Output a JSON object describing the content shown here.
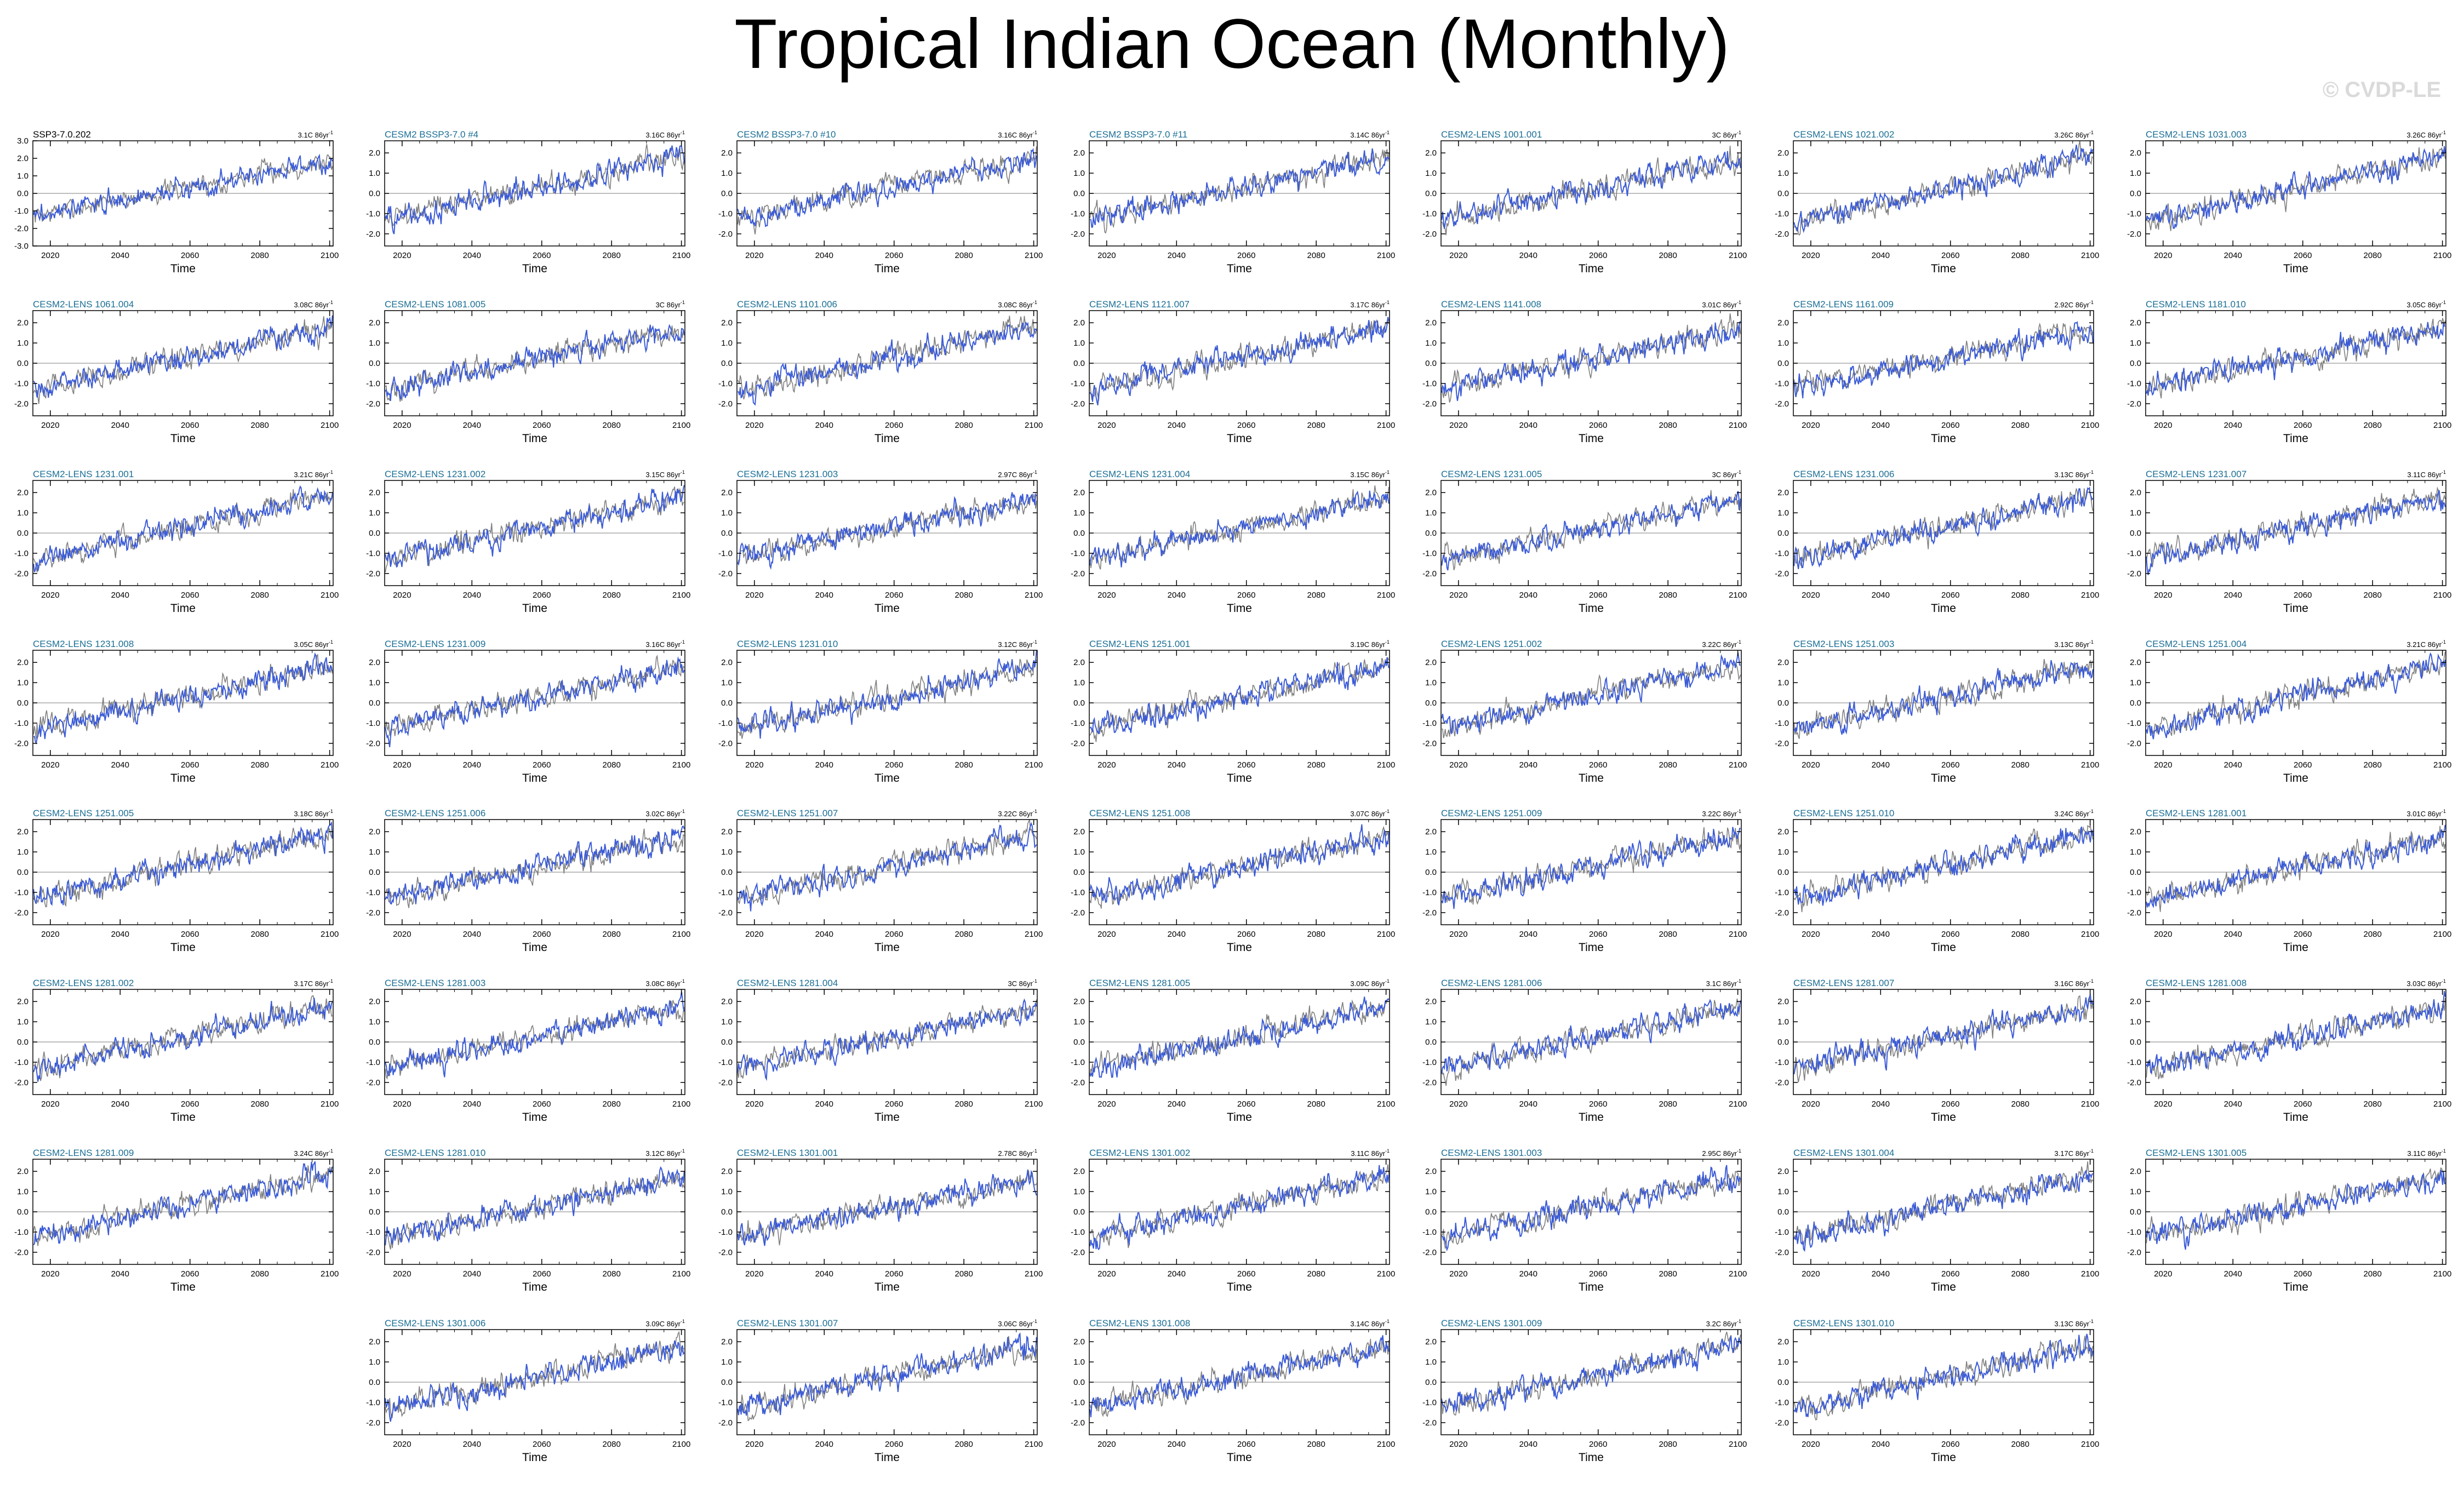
{
  "title": "Tropical Indian Ocean (Monthly)",
  "watermark": "© CVDP-LE",
  "chart_data": {
    "type": "line",
    "title": "Tropical Indian Ocean (Monthly)",
    "xlabel": "Time",
    "xticks": [
      "2020",
      "2040",
      "2060",
      "2080",
      "2100"
    ],
    "xlim": [
      2015,
      2101
    ],
    "grid": false,
    "zero_line": true,
    "colors": {
      "simulation": "#3b5bd6",
      "reference": "#808080",
      "zero_line": "#a9a9a9",
      "axis": "#000000",
      "title_link": "#1a6e95"
    },
    "panels": [
      {
        "title": "SSP3-7.0.202",
        "trend": "3.1C 86yr",
        "ylim": [
          -3,
          3
        ],
        "yticks": [
          "3.0",
          "2.0",
          "1.0",
          "0.0",
          "-1.0",
          "-2.0",
          "-3.0"
        ],
        "start": -1.3,
        "end": 1.9
      },
      {
        "title": "CESM2 BSSP3-7.0 #4",
        "trend": "3.16C 86yr",
        "ylim": [
          -2.6,
          2.6
        ],
        "yticks": [
          "2.0",
          "1.0",
          "0.0",
          "-1.0",
          "-2.0"
        ],
        "start": -1.3,
        "end": 1.9
      },
      {
        "title": "CESM2 BSSP3-7.0 #10",
        "trend": "3.16C 86yr",
        "ylim": [
          -2.6,
          2.6
        ],
        "yticks": [
          "2.0",
          "1.0",
          "0.0",
          "-1.0",
          "-2.0"
        ],
        "start": -1.3,
        "end": 1.8
      },
      {
        "title": "CESM2 BSSP3-7.0 #11",
        "trend": "3.14C 86yr",
        "ylim": [
          -2.6,
          2.6
        ],
        "yticks": [
          "2.0",
          "1.0",
          "0.0",
          "-1.0",
          "-2.0"
        ],
        "start": -1.3,
        "end": 1.8
      },
      {
        "title": "CESM2-LENS 1001.001",
        "trend": "3C 86yr",
        "ylim": [
          -2.6,
          2.6
        ],
        "yticks": [
          "2.0",
          "1.0",
          "0.0",
          "-1.0",
          "-2.0"
        ],
        "start": -1.3,
        "end": 1.7
      },
      {
        "title": "CESM2-LENS 1021.002",
        "trend": "3.26C 86yr",
        "ylim": [
          -2.6,
          2.6
        ],
        "yticks": [
          "2.0",
          "1.0",
          "0.0",
          "-1.0",
          "-2.0"
        ],
        "start": -1.4,
        "end": 1.9
      },
      {
        "title": "CESM2-LENS 1031.003",
        "trend": "3.26C 86yr",
        "ylim": [
          -2.6,
          2.6
        ],
        "yticks": [
          "2.0",
          "1.0",
          "0.0",
          "-1.0",
          "-2.0"
        ],
        "start": -1.3,
        "end": 1.9
      },
      {
        "title": "CESM2-LENS 1061.004",
        "trend": "3.08C 86yr",
        "ylim": [
          -2.6,
          2.6
        ],
        "yticks": [
          "2.0",
          "1.0",
          "0.0",
          "-1.0",
          "-2.0"
        ],
        "start": -1.3,
        "end": 1.8
      },
      {
        "title": "CESM2-LENS 1081.005",
        "trend": "3C 86yr",
        "ylim": [
          -2.6,
          2.6
        ],
        "yticks": [
          "2.0",
          "1.0",
          "0.0",
          "-1.0",
          "-2.0"
        ],
        "start": -1.3,
        "end": 1.7
      },
      {
        "title": "CESM2-LENS 1101.006",
        "trend": "3.08C 86yr",
        "ylim": [
          -2.6,
          2.6
        ],
        "yticks": [
          "2.0",
          "1.0",
          "0.0",
          "-1.0",
          "-2.0"
        ],
        "start": -1.3,
        "end": 1.8
      },
      {
        "title": "CESM2-LENS 1121.007",
        "trend": "3.17C 86yr",
        "ylim": [
          -2.6,
          2.6
        ],
        "yticks": [
          "2.0",
          "1.0",
          "0.0",
          "-1.0",
          "-2.0"
        ],
        "start": -1.3,
        "end": 1.8
      },
      {
        "title": "CESM2-LENS 1141.008",
        "trend": "3.01C 86yr",
        "ylim": [
          -2.6,
          2.6
        ],
        "yticks": [
          "2.0",
          "1.0",
          "0.0",
          "-1.0",
          "-2.0"
        ],
        "start": -1.3,
        "end": 1.7
      },
      {
        "title": "CESM2-LENS 1161.009",
        "trend": "2.92C 86yr",
        "ylim": [
          -2.6,
          2.6
        ],
        "yticks": [
          "2.0",
          "1.0",
          "0.0",
          "-1.0",
          "-2.0"
        ],
        "start": -1.2,
        "end": 1.7
      },
      {
        "title": "CESM2-LENS 1181.010",
        "trend": "3.05C 86yr",
        "ylim": [
          -2.6,
          2.6
        ],
        "yticks": [
          "2.0",
          "1.0",
          "0.0",
          "-1.0",
          "-2.0"
        ],
        "start": -1.3,
        "end": 1.8
      },
      {
        "title": "CESM2-LENS 1231.001",
        "trend": "3.21C 86yr",
        "ylim": [
          -2.6,
          2.6
        ],
        "yticks": [
          "2.0",
          "1.0",
          "0.0",
          "-1.0",
          "-2.0"
        ],
        "start": -1.3,
        "end": 1.9
      },
      {
        "title": "CESM2-LENS 1231.002",
        "trend": "3.15C 86yr",
        "ylim": [
          -2.6,
          2.6
        ],
        "yticks": [
          "2.0",
          "1.0",
          "0.0",
          "-1.0",
          "-2.0"
        ],
        "start": -1.3,
        "end": 1.8
      },
      {
        "title": "CESM2-LENS 1231.003",
        "trend": "2.97C 86yr",
        "ylim": [
          -2.6,
          2.6
        ],
        "yticks": [
          "2.0",
          "1.0",
          "0.0",
          "-1.0",
          "-2.0"
        ],
        "start": -1.2,
        "end": 1.7
      },
      {
        "title": "CESM2-LENS 1231.004",
        "trend": "3.15C 86yr",
        "ylim": [
          -2.6,
          2.6
        ],
        "yticks": [
          "2.0",
          "1.0",
          "0.0",
          "-1.0",
          "-2.0"
        ],
        "start": -1.3,
        "end": 1.8
      },
      {
        "title": "CESM2-LENS 1231.005",
        "trend": "3C 86yr",
        "ylim": [
          -2.6,
          2.6
        ],
        "yticks": [
          "2.0",
          "1.0",
          "0.0",
          "-1.0",
          "-2.0"
        ],
        "start": -1.3,
        "end": 1.7
      },
      {
        "title": "CESM2-LENS 1231.006",
        "trend": "3.13C 86yr",
        "ylim": [
          -2.6,
          2.6
        ],
        "yticks": [
          "2.0",
          "1.0",
          "0.0",
          "-1.0",
          "-2.0"
        ],
        "start": -1.3,
        "end": 1.8
      },
      {
        "title": "CESM2-LENS 1231.007",
        "trend": "3.11C 86yr",
        "ylim": [
          -2.6,
          2.6
        ],
        "yticks": [
          "2.0",
          "1.0",
          "0.0",
          "-1.0",
          "-2.0"
        ],
        "start": -1.3,
        "end": 1.8
      },
      {
        "title": "CESM2-LENS 1231.008",
        "trend": "3.05C 86yr",
        "ylim": [
          -2.6,
          2.6
        ],
        "yticks": [
          "2.0",
          "1.0",
          "0.0",
          "-1.0",
          "-2.0"
        ],
        "start": -1.3,
        "end": 1.8
      },
      {
        "title": "CESM2-LENS 1231.009",
        "trend": "3.16C 86yr",
        "ylim": [
          -2.6,
          2.6
        ],
        "yticks": [
          "2.0",
          "1.0",
          "0.0",
          "-1.0",
          "-2.0"
        ],
        "start": -1.3,
        "end": 1.8
      },
      {
        "title": "CESM2-LENS 1231.010",
        "trend": "3.12C 86yr",
        "ylim": [
          -2.6,
          2.6
        ],
        "yticks": [
          "2.0",
          "1.0",
          "0.0",
          "-1.0",
          "-2.0"
        ],
        "start": -1.3,
        "end": 1.8
      },
      {
        "title": "CESM2-LENS 1251.001",
        "trend": "3.19C 86yr",
        "ylim": [
          -2.6,
          2.6
        ],
        "yticks": [
          "2.0",
          "1.0",
          "0.0",
          "-1.0",
          "-2.0"
        ],
        "start": -1.3,
        "end": 1.9
      },
      {
        "title": "CESM2-LENS 1251.002",
        "trend": "3.22C 86yr",
        "ylim": [
          -2.6,
          2.6
        ],
        "yticks": [
          "2.0",
          "1.0",
          "0.0",
          "-1.0",
          "-2.0"
        ],
        "start": -1.3,
        "end": 1.9
      },
      {
        "title": "CESM2-LENS 1251.003",
        "trend": "3.13C 86yr",
        "ylim": [
          -2.6,
          2.6
        ],
        "yticks": [
          "2.0",
          "1.0",
          "0.0",
          "-1.0",
          "-2.0"
        ],
        "start": -1.3,
        "end": 1.8
      },
      {
        "title": "CESM2-LENS 1251.004",
        "trend": "3.21C 86yr",
        "ylim": [
          -2.6,
          2.6
        ],
        "yticks": [
          "2.0",
          "1.0",
          "0.0",
          "-1.0",
          "-2.0"
        ],
        "start": -1.3,
        "end": 1.9
      },
      {
        "title": "CESM2-LENS 1251.005",
        "trend": "3.18C 86yr",
        "ylim": [
          -2.6,
          2.6
        ],
        "yticks": [
          "3.0",
          "2.0",
          "1.0",
          "0.0",
          "-1.0",
          "-2.0"
        ],
        "start": -1.3,
        "end": 1.9
      },
      {
        "title": "CESM2-LENS 1251.006",
        "trend": "3.02C 86yr",
        "ylim": [
          -2.6,
          2.6
        ],
        "yticks": [
          "2.0",
          "1.0",
          "0.0",
          "-1.0",
          "-2.0"
        ],
        "start": -1.3,
        "end": 1.7
      },
      {
        "title": "CESM2-LENS 1251.007",
        "trend": "3.22C 86yr",
        "ylim": [
          -2.6,
          2.6
        ],
        "yticks": [
          "2.0",
          "1.0",
          "0.0",
          "-1.0",
          "-2.0"
        ],
        "start": -1.3,
        "end": 1.9
      },
      {
        "title": "CESM2-LENS 1251.008",
        "trend": "3.07C 86yr",
        "ylim": [
          -2.6,
          2.6
        ],
        "yticks": [
          "2.0",
          "1.0",
          "0.0",
          "-1.0",
          "-2.0"
        ],
        "start": -1.3,
        "end": 1.8
      },
      {
        "title": "CESM2-LENS 1251.009",
        "trend": "3.22C 86yr",
        "ylim": [
          -2.6,
          2.6
        ],
        "yticks": [
          "2.0",
          "1.0",
          "0.0",
          "-1.0",
          "-2.0"
        ],
        "start": -1.3,
        "end": 1.9
      },
      {
        "title": "CESM2-LENS 1251.010",
        "trend": "3.24C 86yr",
        "ylim": [
          -2.6,
          2.6
        ],
        "yticks": [
          "2.0",
          "1.0",
          "0.0",
          "-1.0",
          "-2.0"
        ],
        "start": -1.3,
        "end": 1.9
      },
      {
        "title": "CESM2-LENS 1281.001",
        "trend": "3.01C 86yr",
        "ylim": [
          -2.6,
          2.6
        ],
        "yticks": [
          "2.0",
          "1.0",
          "0.0",
          "-1.0",
          "-2.0"
        ],
        "start": -1.3,
        "end": 1.7
      },
      {
        "title": "CESM2-LENS 1281.002",
        "trend": "3.17C 86yr",
        "ylim": [
          -2.6,
          2.6
        ],
        "yticks": [
          "3.0",
          "2.0",
          "1.0",
          "0.0",
          "-1.0",
          "-2.0"
        ],
        "start": -1.3,
        "end": 1.8
      },
      {
        "title": "CESM2-LENS 1281.003",
        "trend": "3.08C 86yr",
        "ylim": [
          -2.6,
          2.6
        ],
        "yticks": [
          "2.0",
          "1.0",
          "0.0",
          "-1.0",
          "-2.0"
        ],
        "start": -1.3,
        "end": 1.8
      },
      {
        "title": "CESM2-LENS 1281.004",
        "trend": "3C 86yr",
        "ylim": [
          -2.6,
          2.6
        ],
        "yticks": [
          "2.0",
          "1.0",
          "0.0",
          "-1.0",
          "-2.0"
        ],
        "start": -1.3,
        "end": 1.7
      },
      {
        "title": "CESM2-LENS 1281.005",
        "trend": "3.09C 86yr",
        "ylim": [
          -2.6,
          2.6
        ],
        "yticks": [
          "2.0",
          "1.0",
          "0.0",
          "-1.0",
          "-2.0"
        ],
        "start": -1.3,
        "end": 1.8
      },
      {
        "title": "CESM2-LENS 1281.006",
        "trend": "3.1C 86yr",
        "ylim": [
          -2.6,
          2.6
        ],
        "yticks": [
          "2.0",
          "1.0",
          "0.0",
          "-1.0",
          "-2.0"
        ],
        "start": -1.3,
        "end": 1.8
      },
      {
        "title": "CESM2-LENS 1281.007",
        "trend": "3.16C 86yr",
        "ylim": [
          -2.6,
          2.6
        ],
        "yticks": [
          "2.0",
          "1.0",
          "0.0",
          "-1.0",
          "-2.0"
        ],
        "start": -1.3,
        "end": 1.8
      },
      {
        "title": "CESM2-LENS 1281.008",
        "trend": "3.03C 86yr",
        "ylim": [
          -2.6,
          2.6
        ],
        "yticks": [
          "2.0",
          "1.0",
          "0.0",
          "-1.0",
          "-2.0"
        ],
        "start": -1.3,
        "end": 1.7
      },
      {
        "title": "CESM2-LENS 1281.009",
        "trend": "3.24C 86yr",
        "ylim": [
          -2.6,
          2.6
        ],
        "yticks": [
          "2.0",
          "1.0",
          "0.0",
          "-1.0",
          "-2.0"
        ],
        "start": -1.3,
        "end": 1.9
      },
      {
        "title": "CESM2-LENS 1281.010",
        "trend": "3.12C 86yr",
        "ylim": [
          -2.6,
          2.6
        ],
        "yticks": [
          "2.0",
          "1.0",
          "0.0",
          "-1.0",
          "-2.0"
        ],
        "start": -1.3,
        "end": 1.8
      },
      {
        "title": "CESM2-LENS 1301.001",
        "trend": "2.78C 86yr",
        "ylim": [
          -2.6,
          2.6
        ],
        "yticks": [
          "2.0",
          "1.0",
          "0.0",
          "-1.0",
          "-2.0"
        ],
        "start": -1.2,
        "end": 1.6
      },
      {
        "title": "CESM2-LENS 1301.002",
        "trend": "3.11C 86yr",
        "ylim": [
          -2.6,
          2.6
        ],
        "yticks": [
          "2.0",
          "1.0",
          "0.0",
          "-1.0",
          "-2.0"
        ],
        "start": -1.3,
        "end": 1.8
      },
      {
        "title": "CESM2-LENS 1301.003",
        "trend": "2.95C 86yr",
        "ylim": [
          -2.6,
          2.6
        ],
        "yticks": [
          "2.0",
          "1.0",
          "0.0",
          "-1.0",
          "-2.0"
        ],
        "start": -1.3,
        "end": 1.7
      },
      {
        "title": "CESM2-LENS 1301.004",
        "trend": "3.17C 86yr",
        "ylim": [
          -2.6,
          2.6
        ],
        "yticks": [
          "2.0",
          "1.0",
          "0.0",
          "-1.0",
          "-2.0"
        ],
        "start": -1.3,
        "end": 1.8
      },
      {
        "title": "CESM2-LENS 1301.005",
        "trend": "3.11C 86yr",
        "ylim": [
          -2.6,
          2.6
        ],
        "yticks": [
          "2.0",
          "1.0",
          "0.0",
          "-1.0",
          "-2.0"
        ],
        "start": -1.3,
        "end": 1.8
      },
      {
        "title": "CESM2-LENS 1301.006",
        "trend": "3.09C 86yr",
        "ylim": [
          -2.6,
          2.6
        ],
        "yticks": [
          "2.0",
          "1.0",
          "0.0",
          "-1.0",
          "-2.0"
        ],
        "start": -1.3,
        "end": 1.8
      },
      {
        "title": "CESM2-LENS 1301.007",
        "trend": "3.06C 86yr",
        "ylim": [
          -2.6,
          2.6
        ],
        "yticks": [
          "2.0",
          "1.0",
          "0.0",
          "-1.0",
          "-2.0"
        ],
        "start": -1.3,
        "end": 1.8
      },
      {
        "title": "CESM2-LENS 1301.008",
        "trend": "3.14C 86yr",
        "ylim": [
          -2.6,
          2.6
        ],
        "yticks": [
          "2.0",
          "1.0",
          "0.0",
          "-1.0",
          "-2.0"
        ],
        "start": -1.3,
        "end": 1.8
      },
      {
        "title": "CESM2-LENS 1301.009",
        "trend": "3.2C 86yr",
        "ylim": [
          -2.6,
          2.6
        ],
        "yticks": [
          "2.0",
          "1.0",
          "0.0",
          "-1.0",
          "-2.0"
        ],
        "start": -1.3,
        "end": 1.9
      },
      {
        "title": "CESM2-LENS 1301.010",
        "trend": "3.13C 86yr",
        "ylim": [
          -2.6,
          2.6
        ],
        "yticks": [
          "2.0",
          "1.0",
          "0.0",
          "-1.0",
          "-2.0"
        ],
        "start": -1.3,
        "end": 1.8
      }
    ]
  }
}
